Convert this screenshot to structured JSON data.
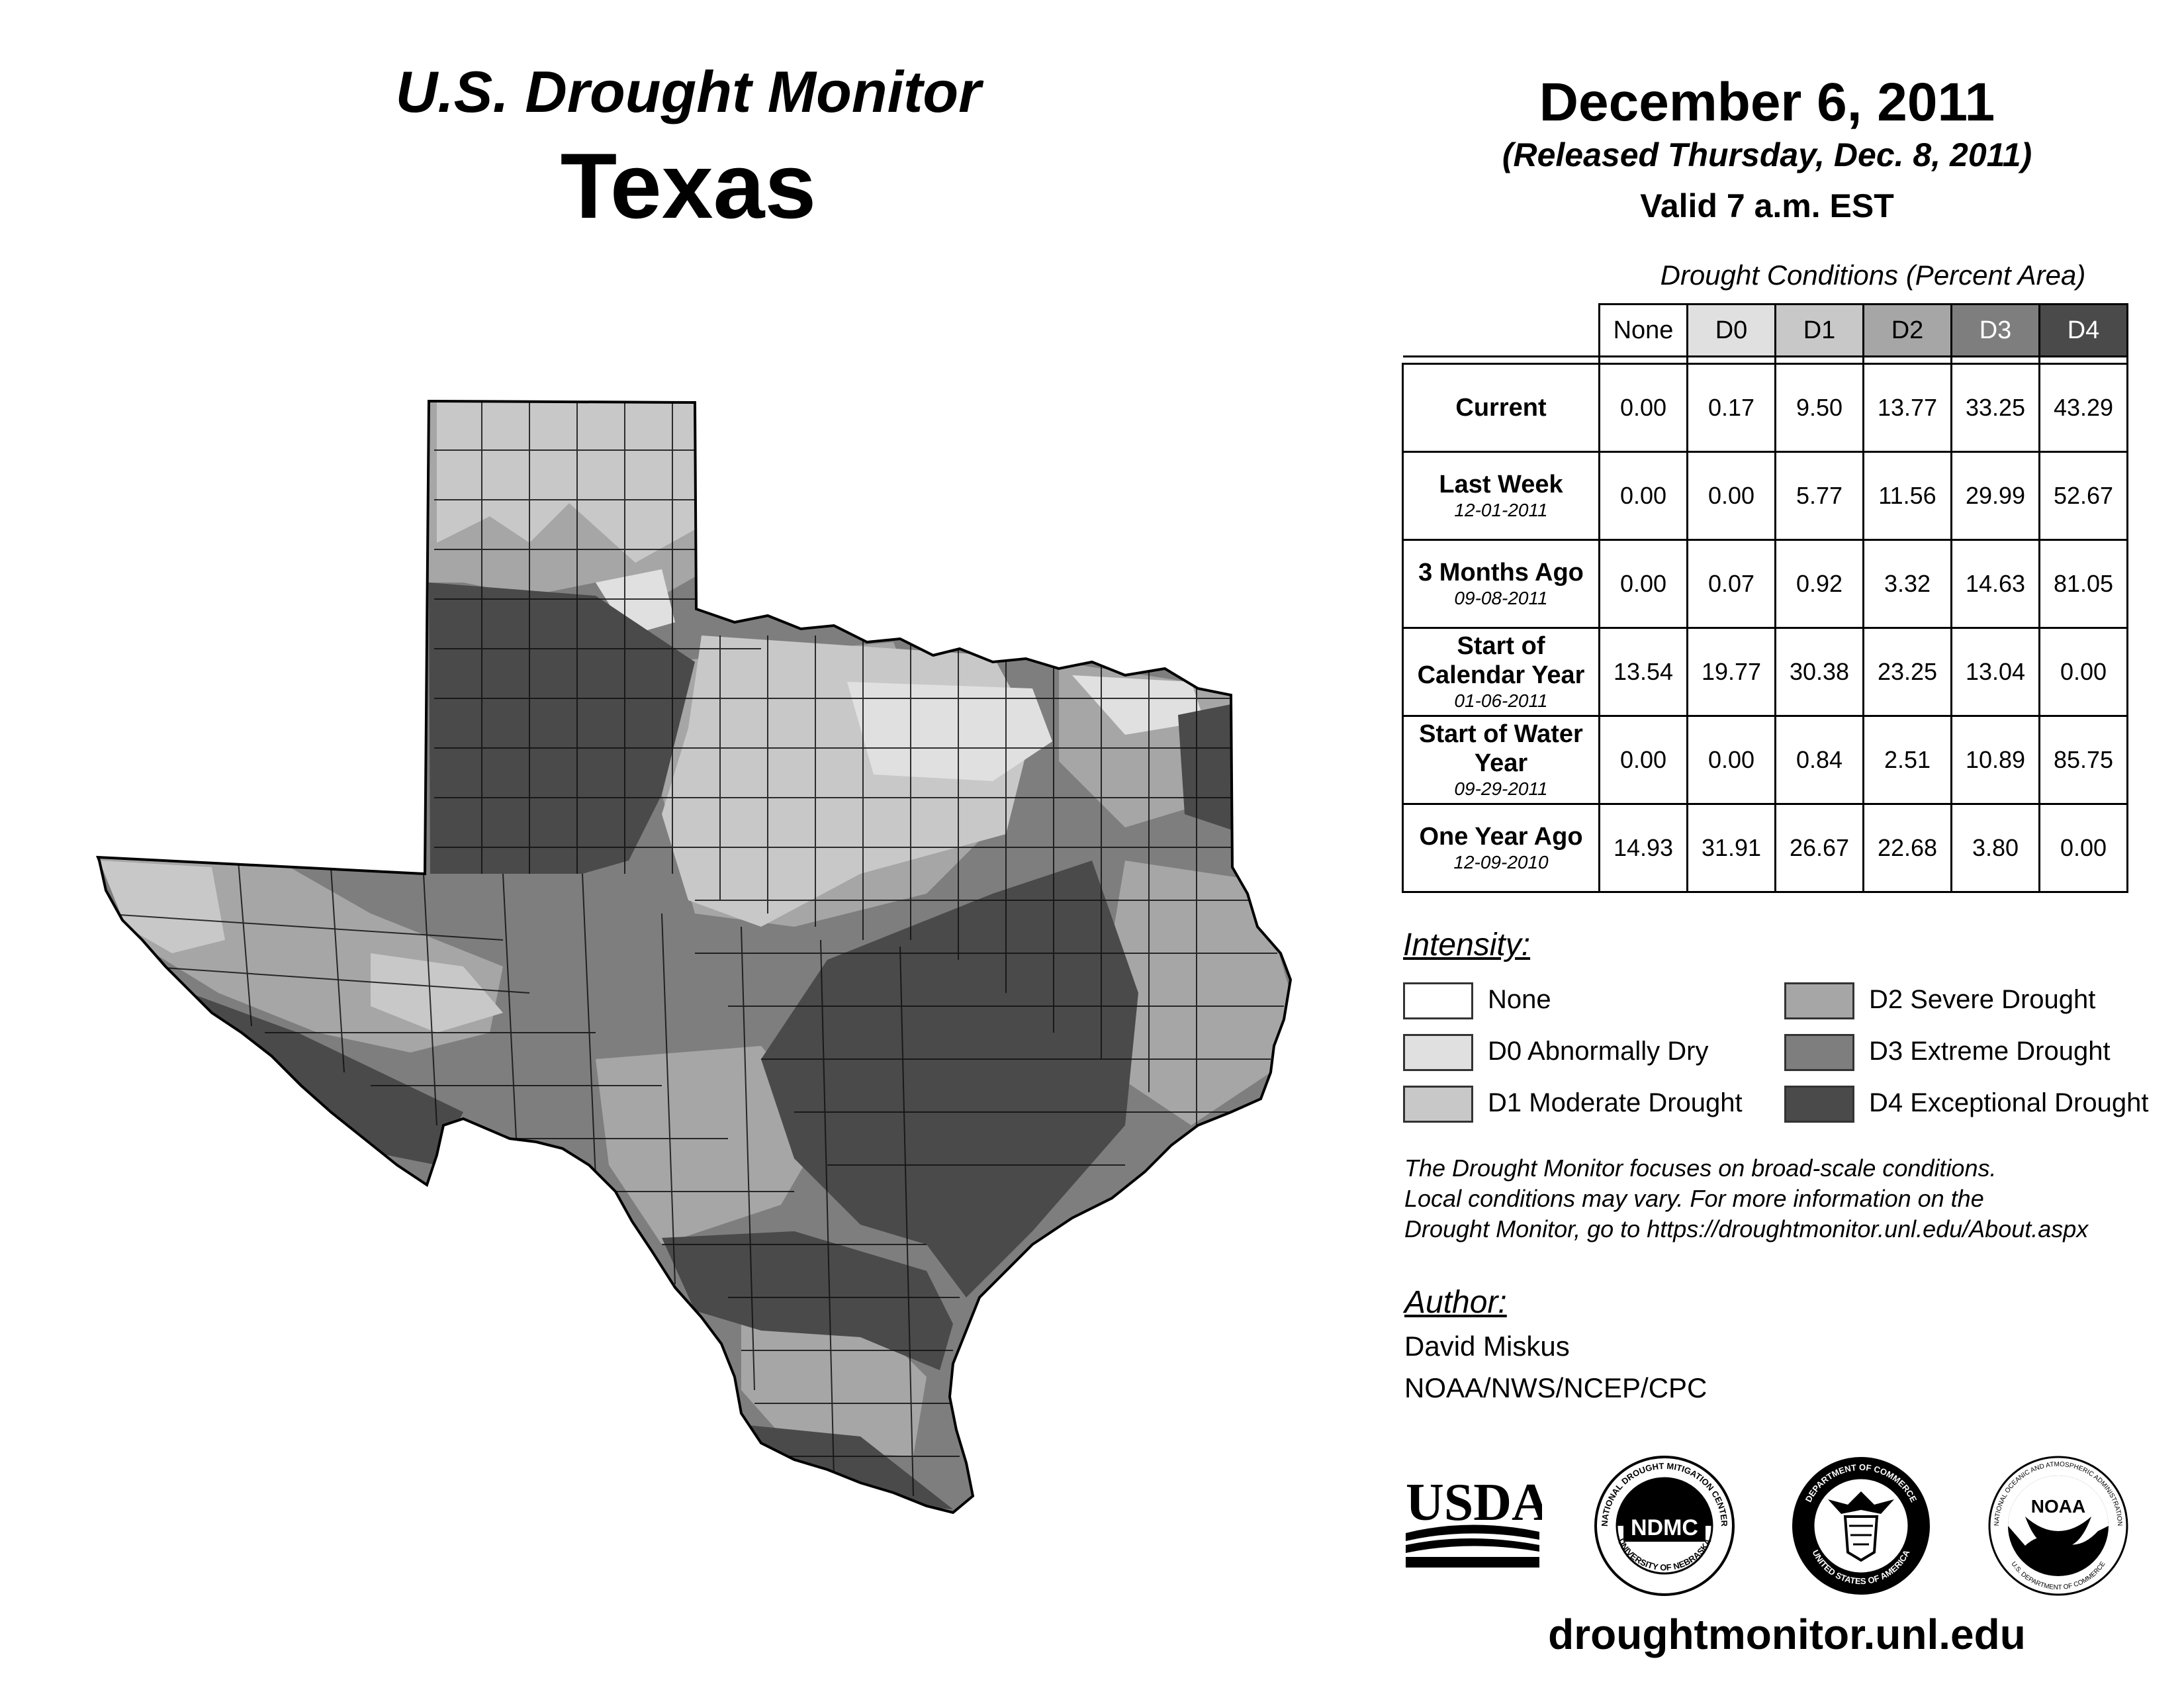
{
  "header": {
    "title": "U.S. Drought Monitor",
    "state": "Texas",
    "date": "December 6, 2011",
    "released": "(Released Thursday, Dec. 8, 2011)",
    "valid": "Valid 7 a.m. EST"
  },
  "table": {
    "caption": "Drought Conditions (Percent Area)",
    "columns": [
      "None",
      "D0",
      "D1",
      "D2",
      "D3",
      "D4"
    ],
    "rows": [
      {
        "label": "Current",
        "sublabel": "",
        "values": [
          "0.00",
          "0.17",
          "9.50",
          "13.77",
          "33.25",
          "43.29"
        ]
      },
      {
        "label": "Last Week",
        "sublabel": "12-01-2011",
        "values": [
          "0.00",
          "0.00",
          "5.77",
          "11.56",
          "29.99",
          "52.67"
        ]
      },
      {
        "label": "3 Months Ago",
        "sublabel": "09-08-2011",
        "values": [
          "0.00",
          "0.07",
          "0.92",
          "3.32",
          "14.63",
          "81.05"
        ]
      },
      {
        "label": "Start of Calendar Year",
        "sublabel": "01-06-2011",
        "values": [
          "13.54",
          "19.77",
          "30.38",
          "23.25",
          "13.04",
          "0.00"
        ]
      },
      {
        "label": "Start of Water Year",
        "sublabel": "09-29-2011",
        "values": [
          "0.00",
          "0.00",
          "0.84",
          "2.51",
          "10.89",
          "85.75"
        ]
      },
      {
        "label": "One Year Ago",
        "sublabel": "12-09-2010",
        "values": [
          "14.93",
          "31.91",
          "26.67",
          "22.68",
          "3.80",
          "0.00"
        ]
      }
    ]
  },
  "legend": {
    "title": "Intensity:",
    "items": [
      {
        "label": "None",
        "color": "#ffffff"
      },
      {
        "label": "D0 Abnormally Dry",
        "color": "#e0e0e0"
      },
      {
        "label": "D1 Moderate Drought",
        "color": "#c8c8c8"
      },
      {
        "label": "D2 Severe Drought",
        "color": "#a6a6a6"
      },
      {
        "label": "D3 Extreme Drought",
        "color": "#7e7e7e"
      },
      {
        "label": "D4 Exceptional Drought",
        "color": "#4a4a4a"
      }
    ]
  },
  "note": {
    "line1": "The Drought Monitor focuses on broad-scale conditions.",
    "line2": "Local conditions may vary. For more information on the",
    "line3": "Drought Monitor, go to https://droughtmonitor.unl.edu/About.aspx"
  },
  "author": {
    "title": "Author:",
    "name": "David Miskus",
    "org": "NOAA/NWS/NCEP/CPC"
  },
  "logos": {
    "usda": "USDA",
    "ndmc": "NDMC",
    "ndmc_ring_top": "NATIONAL DROUGHT MITIGATION CENTER",
    "ndmc_ring_bottom": "UNIVERSITY OF NEBRASKA",
    "doc_ring_top": "DEPARTMENT OF COMMERCE",
    "doc_ring_bottom": "UNITED STATES OF AMERICA",
    "noaa": "NOAA",
    "noaa_ring_top": "NATIONAL OCEANIC AND ATMOSPHERIC ADMINISTRATION",
    "noaa_ring_bottom": "U.S. DEPARTMENT OF COMMERCE"
  },
  "footer": {
    "site": "droughtmonitor.unl.edu"
  },
  "map": {
    "region": "Texas",
    "colors": {
      "d0": "#e0e0e0",
      "d1": "#c8c8c8",
      "d2": "#a6a6a6",
      "d3": "#7e7e7e",
      "d4": "#4a4a4a",
      "border": "#000000"
    }
  }
}
